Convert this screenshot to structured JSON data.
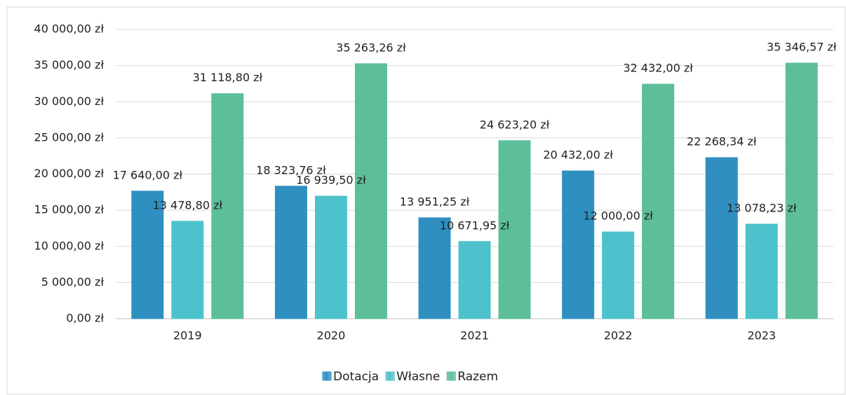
{
  "chart_data": {
    "type": "bar",
    "categories": [
      "2019",
      "2020",
      "2021",
      "2022",
      "2023"
    ],
    "series": [
      {
        "name": "Dotacja",
        "color": "#2f8fc0",
        "values": [
          17640,
          18323.76,
          13951.25,
          20432,
          22268.34
        ],
        "value_labels": [
          "17 640,00 zł",
          "18 323,76 zł",
          "13 951,25 zł",
          "20 432,00 zł",
          "22 268,34 zł"
        ]
      },
      {
        "name": "Własne",
        "color": "#4ec2cc",
        "values": [
          13478.8,
          16939.5,
          10671.95,
          12000,
          13078.23
        ],
        "value_labels": [
          "13 478,80 zł",
          "16 939,50 zł",
          "10 671,95 zł",
          "12 000,00 zł",
          "13 078,23 zł"
        ]
      },
      {
        "name": "Razem",
        "color": "#5cbf99",
        "values": [
          31118.8,
          35263.26,
          24623.2,
          32432,
          35346.57
        ],
        "value_labels": [
          "31 118,80 zł",
          "35 263,26 zł",
          "24 623,20 zł",
          "32 432,00 zł",
          "35 346,57 zł"
        ]
      }
    ],
    "ylim": [
      0,
      40000
    ],
    "yticks": [
      {
        "value": 0,
        "label": "0,00 zł"
      },
      {
        "value": 5000,
        "label": "5 000,00 zł"
      },
      {
        "value": 10000,
        "label": "10 000,00 zł"
      },
      {
        "value": 15000,
        "label": "15 000,00 zł"
      },
      {
        "value": 20000,
        "label": "20 000,00 zł"
      },
      {
        "value": 25000,
        "label": "25 000,00 zł"
      },
      {
        "value": 30000,
        "label": "30 000,00 zł"
      },
      {
        "value": 35000,
        "label": "35 000,00 zł"
      },
      {
        "value": 40000,
        "label": "40 000,00 zł"
      }
    ],
    "grid": true,
    "legend": "bottom"
  }
}
